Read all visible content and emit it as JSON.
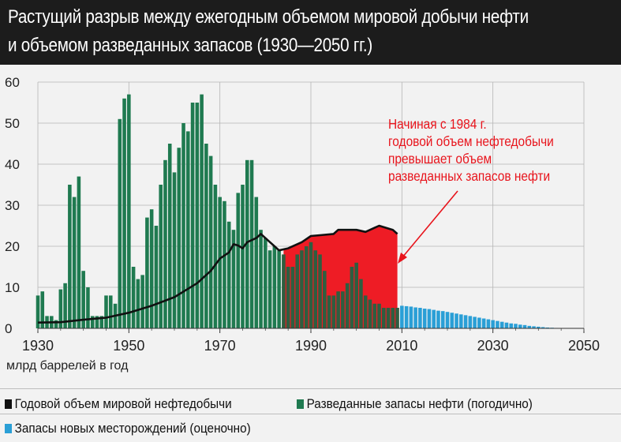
{
  "title": {
    "line1": "Растущий разрыв между ежегодным объемом мировой  добычи нефти",
    "line2": "и объемом разведанных запасов (1930—2050 гг.)"
  },
  "colors": {
    "discoveries": "#1f7a50",
    "production": "#111111",
    "gap": "#ee1c25",
    "forecast": "#2a9fd6",
    "background": "#f2f2f2"
  },
  "legend": {
    "production": "Годовой объем мировой нефтедобычи",
    "discoveries": "Разведанные запасы нефти (погодично)",
    "forecast": "Запасы новых месторождений (оценочно)"
  },
  "chart_data": {
    "type": "bar",
    "ylabel": "млрд баррелей в год",
    "ylim": [
      0,
      60
    ],
    "yticks": [
      "0",
      "10",
      "20",
      "30",
      "40",
      "50",
      "60"
    ],
    "xlim": [
      1930,
      2050
    ],
    "xticks": [
      "1930",
      "1950",
      "1970",
      "1990",
      "2010",
      "2030",
      "2050"
    ],
    "grid": true,
    "legend_placement": "bottom",
    "annotation": [
      "Начиная с 1984 г.",
      "годовой объем нефтедобычи",
      "превышает объем",
      "разведанных запасов нефти"
    ],
    "series": [
      {
        "name": "Разведанные запасы нефти (погодично)",
        "type": "bar",
        "start_year": 1930,
        "values": [
          8,
          9,
          3,
          3,
          2,
          9.5,
          11,
          35,
          32,
          37,
          14,
          10,
          3,
          3,
          3,
          8,
          8,
          6,
          51,
          56,
          57,
          15,
          12,
          13,
          27,
          29,
          25,
          35,
          41,
          45,
          38,
          44,
          50,
          48,
          55,
          55,
          57,
          45,
          42,
          35,
          32,
          31,
          26,
          24,
          33,
          35,
          41,
          41,
          32,
          24,
          22,
          19,
          20,
          19,
          18,
          15,
          15,
          18,
          19,
          20,
          21,
          19,
          18,
          14,
          8,
          8,
          9,
          9,
          11,
          15,
          16,
          12,
          8,
          7,
          6,
          6,
          5,
          5,
          5,
          5
        ]
      },
      {
        "name": "Запасы новых месторождений (оценочно)",
        "type": "bar",
        "start_year": 2010,
        "values": [
          5.5,
          5.4,
          5.3,
          5.1,
          5,
          4.8,
          4.7,
          4.5,
          4.3,
          4.2,
          4,
          3.8,
          3.6,
          3.4,
          3.2,
          3,
          2.8,
          2.6,
          2.4,
          2.2,
          2,
          1.8,
          1.6,
          1.4,
          1.2,
          1.1,
          0.9,
          0.8,
          0.6,
          0.5,
          0.4,
          0.3,
          0.2,
          0.15,
          0.1,
          0.05,
          0.03,
          0.02,
          0.01,
          0.01
        ]
      },
      {
        "name": "Годовой объем мировой нефтедобычи",
        "type": "line",
        "points": [
          [
            1930,
            1.4
          ],
          [
            1935,
            1.5
          ],
          [
            1940,
            2.1
          ],
          [
            1945,
            2.6
          ],
          [
            1950,
            3.8
          ],
          [
            1955,
            5.5
          ],
          [
            1960,
            7.6
          ],
          [
            1965,
            11
          ],
          [
            1968,
            14
          ],
          [
            1970,
            17
          ],
          [
            1972,
            18.5
          ],
          [
            1973,
            20.5
          ],
          [
            1974,
            20.2
          ],
          [
            1975,
            19.5
          ],
          [
            1976,
            21
          ],
          [
            1978,
            22
          ],
          [
            1979,
            23
          ],
          [
            1980,
            22
          ],
          [
            1981,
            21
          ],
          [
            1982,
            20
          ],
          [
            1983,
            19
          ],
          [
            1985,
            19.5
          ],
          [
            1988,
            21
          ],
          [
            1990,
            22.5
          ],
          [
            1992,
            22.7
          ],
          [
            1995,
            23
          ],
          [
            1996,
            24
          ],
          [
            2000,
            24
          ],
          [
            2002,
            23.5
          ],
          [
            2004,
            24.5
          ],
          [
            2005,
            25
          ],
          [
            2008,
            24
          ],
          [
            2009,
            23
          ]
        ]
      }
    ]
  }
}
